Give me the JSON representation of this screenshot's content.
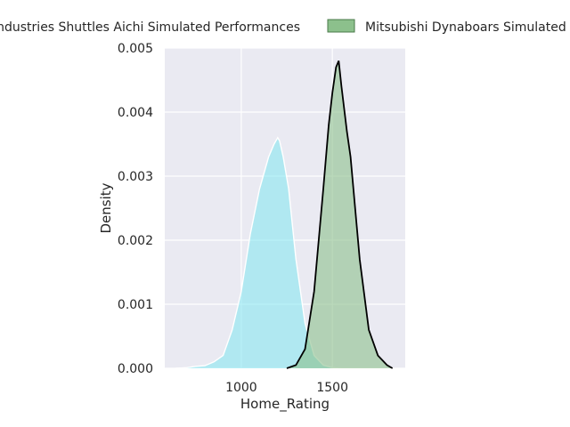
{
  "chart_data": {
    "type": "area",
    "xlabel": "Home_Rating",
    "ylabel": "Density",
    "xlim": [
      580,
      1900
    ],
    "ylim": [
      0,
      0.005
    ],
    "x_ticks": [
      1000,
      1500
    ],
    "x_tick_labels": [
      "1000",
      "1500"
    ],
    "y_ticks": [
      0,
      0.001,
      0.002,
      0.003,
      0.004,
      0.005
    ],
    "y_tick_labels": [
      "0.000",
      "0.001",
      "0.002",
      "0.003",
      "0.004",
      "0.005"
    ],
    "grid": true,
    "legend_placement": "top-center (outside, above axes)",
    "background_color": "#eaeaf2",
    "series": [
      {
        "name": "Industries Shuttles Aichi Simulated Performances",
        "fill": "#7fe6f0",
        "edge": "#ffffff",
        "x": [
          640,
          700,
          750,
          800,
          850,
          900,
          950,
          1000,
          1050,
          1100,
          1150,
          1180,
          1200,
          1210,
          1230,
          1260,
          1300,
          1350,
          1400,
          1450,
          1500,
          1550
        ],
        "y": [
          0.0,
          1e-05,
          3e-05,
          4e-05,
          0.0001,
          0.0002,
          0.0006,
          0.0012,
          0.0021,
          0.0028,
          0.0033,
          0.0035,
          0.0036,
          0.00355,
          0.0033,
          0.0028,
          0.0017,
          0.0007,
          0.0002,
          5e-05,
          1e-05,
          0.0
        ]
      },
      {
        "name": "Mitsubishi Dynaboars Simulated Performances",
        "fill": "#8cc08c",
        "edge": "#000000",
        "x": [
          1250,
          1300,
          1350,
          1400,
          1450,
          1480,
          1500,
          1520,
          1535,
          1550,
          1580,
          1600,
          1650,
          1700,
          1750,
          1800,
          1830
        ],
        "y": [
          0.0,
          5e-05,
          0.0003,
          0.0012,
          0.0028,
          0.0038,
          0.0043,
          0.0047,
          0.0048,
          0.0044,
          0.0037,
          0.0033,
          0.0017,
          0.0006,
          0.0002,
          5e-05,
          0.0
        ]
      }
    ]
  }
}
